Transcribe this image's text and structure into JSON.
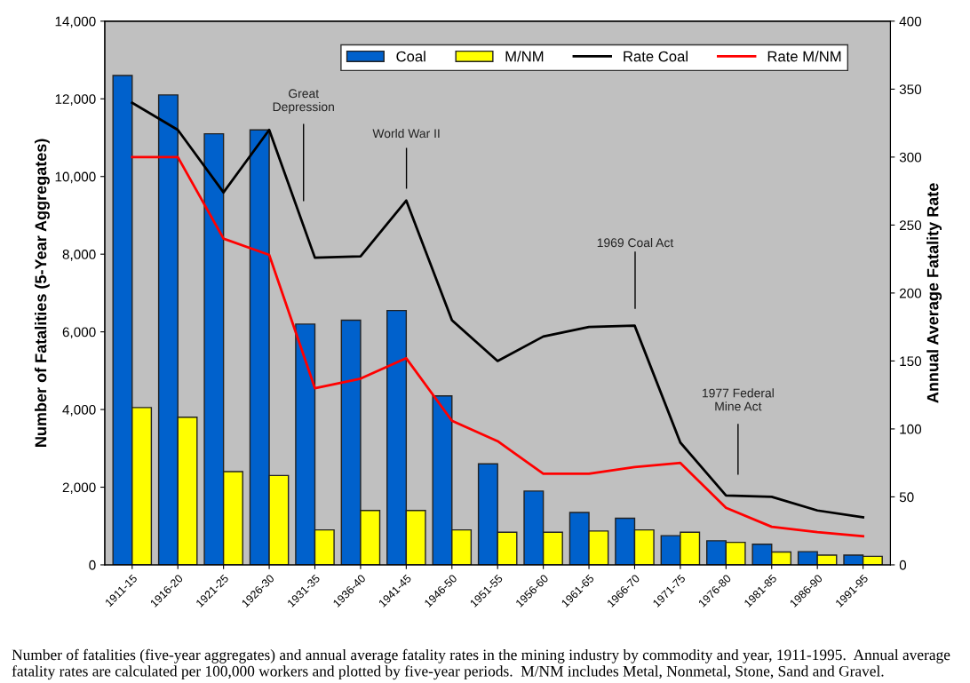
{
  "chart_data": {
    "type": "bar",
    "categories": [
      "1911-15",
      "1916-20",
      "1921-25",
      "1926-30",
      "1931-35",
      "1936-40",
      "1941-45",
      "1946-50",
      "1951-55",
      "1956-60",
      "1961-65",
      "1966-70",
      "1971-75",
      "1976-80",
      "1981-85",
      "1986-90",
      "1991-95"
    ],
    "series": [
      {
        "name": "Coal",
        "color": "#0061cc",
        "values": [
          12600,
          12100,
          11100,
          11200,
          6200,
          6300,
          6550,
          4350,
          2600,
          1900,
          1350,
          1200,
          750,
          620,
          530,
          340,
          250
        ]
      },
      {
        "name": "M/NM",
        "color": "#ffff00",
        "values": [
          4050,
          3800,
          2400,
          2300,
          900,
          1400,
          1400,
          900,
          840,
          840,
          870,
          900,
          840,
          580,
          330,
          250,
          220
        ]
      },
      {
        "name": "Rate Coal",
        "type": "line",
        "axis": "y2",
        "color": "#000000",
        "values": [
          340,
          320,
          274,
          320,
          226,
          227,
          268,
          180,
          150,
          168,
          175,
          176,
          90,
          51,
          50,
          40,
          35
        ]
      },
      {
        "name": "Rate M/NM",
        "type": "line",
        "axis": "y2",
        "color": "#ff0000",
        "values": [
          300,
          300,
          240,
          228,
          130,
          137,
          152,
          106,
          91,
          67,
          67,
          72,
          75,
          42,
          28,
          24,
          21
        ]
      }
    ],
    "ylabel": "Number of Fatalities (5-Year Aggregates)",
    "y2label": "Annual Average Fatality Rate",
    "ylim": [
      0,
      14000
    ],
    "yticks": [
      {
        "value": 0,
        "label": "0"
      },
      {
        "value": 2000,
        "label": "2,000"
      },
      {
        "value": 4000,
        "label": "4,000"
      },
      {
        "value": 6000,
        "label": "6,000"
      },
      {
        "value": 8000,
        "label": "8,000"
      },
      {
        "value": 10000,
        "label": "10,000"
      },
      {
        "value": 12000,
        "label": "12,000"
      },
      {
        "value": 14000,
        "label": "14,000"
      }
    ],
    "y2lim": [
      0,
      400
    ],
    "y2ticks": [
      0,
      50,
      100,
      150,
      200,
      250,
      300,
      350,
      400
    ],
    "legend": "top right",
    "grid": false,
    "marker": "none",
    "line_style": "solid",
    "annotations": [
      "Great\nDepression",
      "World War II",
      "1969 Coal Act",
      "1977 Federal\nMine Act",
      "Number of fatalities (five-year aggregates) and annual average fatality rates in the mining industry by commodity and year, 1911-1995.  Annual average fatality rates are calculated per 100,000 workers and plotted by five-year periods.  M/NM includes Metal, Nonmetal, Stone, Sand and Gravel."
    ]
  }
}
